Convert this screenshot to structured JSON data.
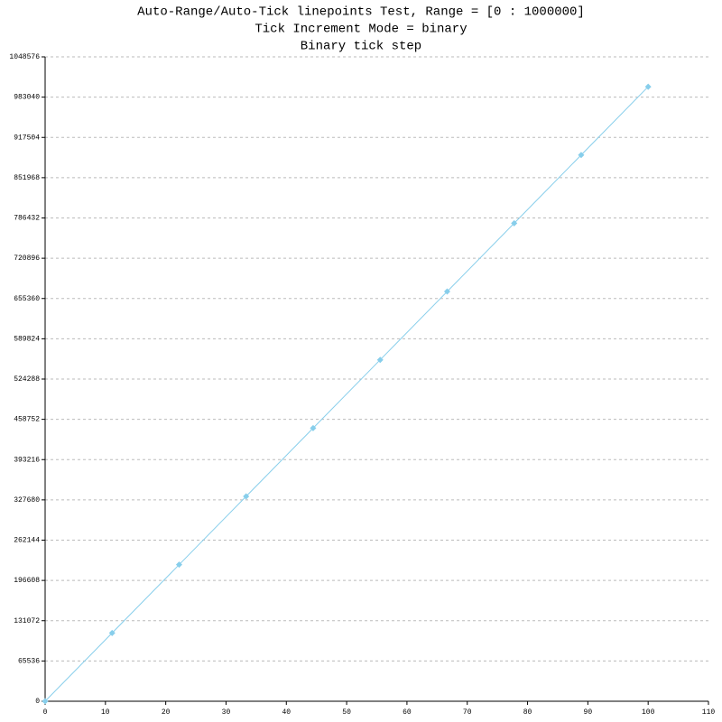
{
  "chart_data": {
    "type": "linepoints",
    "title": [
      "Auto-Range/Auto-Tick linepoints Test, Range = [0 : 1000000]",
      "Tick Increment Mode = binary",
      "Binary tick step"
    ],
    "x": [
      0,
      11.11,
      22.22,
      33.33,
      44.44,
      55.56,
      66.67,
      77.78,
      88.89,
      100
    ],
    "series": [
      {
        "color": "#87ceeb",
        "values": [
          0,
          111111,
          222222,
          333333,
          444444,
          555556,
          666667,
          777778,
          888889,
          1000000
        ]
      }
    ],
    "xlim": [
      0,
      110
    ],
    "xticks": [
      0,
      10,
      20,
      30,
      40,
      50,
      60,
      70,
      80,
      90,
      100,
      110
    ],
    "ylim": [
      0,
      1048576
    ],
    "yticks": [
      0,
      65536,
      131072,
      196608,
      262144,
      327680,
      393216,
      458752,
      524288,
      589824,
      655360,
      720896,
      786432,
      851968,
      917504,
      983040,
      1048576
    ],
    "grid": true
  }
}
